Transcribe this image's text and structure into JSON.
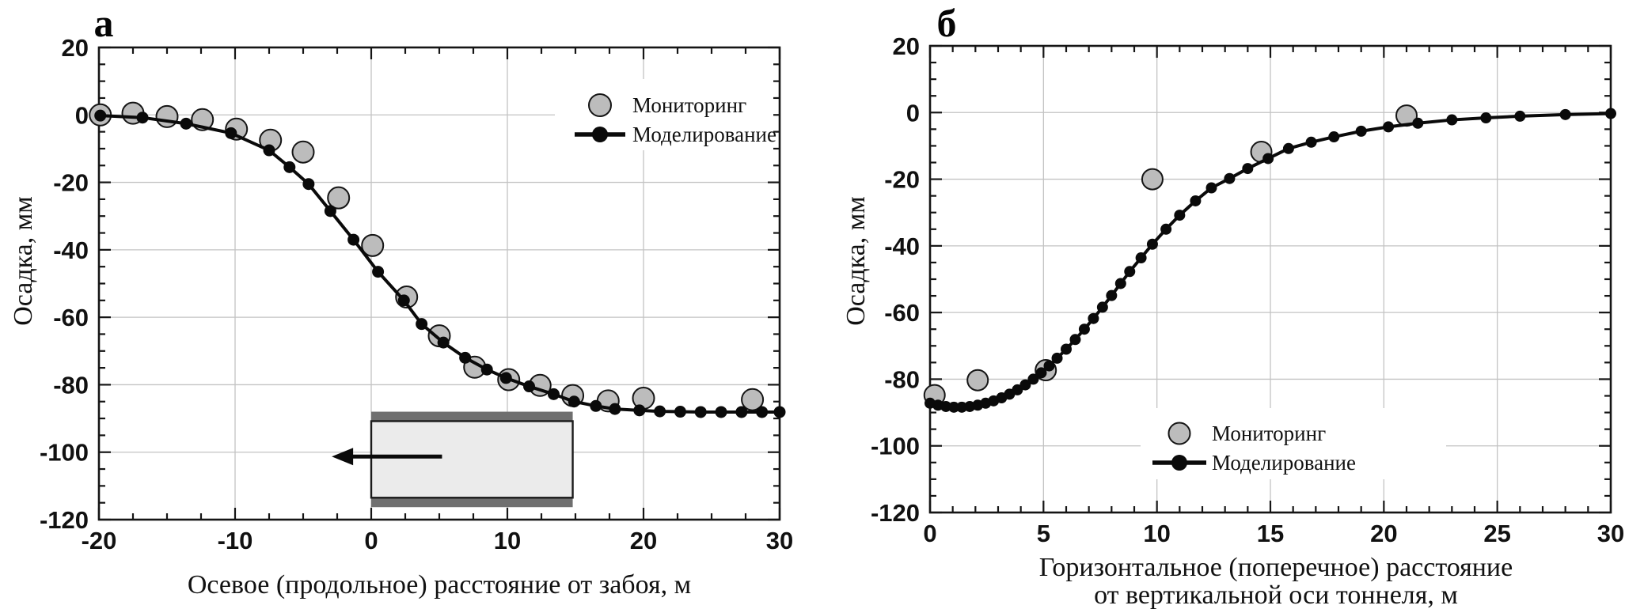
{
  "figure": {
    "background": "#ffffff",
    "colors": {
      "monitoring_fill": "#bcbcbc",
      "monitoring_stroke": "#151515",
      "model": "#0a0a0a",
      "grid": "#c3c3c3",
      "frame": "#151515",
      "tunnel_body": "#ebebeb",
      "tunnel_lining": "#6f6f6f",
      "tunnel_border": "#1b1b1b"
    }
  },
  "chart_data": [
    {
      "id": "a",
      "type": "scatter",
      "panel_letter": "а",
      "ylabel": "Осадка, мм",
      "xlabel_lines": [
        "Осевое (продольное) расстояние от забоя, м"
      ],
      "xlim": [
        -20,
        30
      ],
      "ylim": [
        -120,
        20
      ],
      "x_ticks": [
        -20,
        -10,
        0,
        10,
        20,
        30
      ],
      "y_ticks": [
        20,
        0,
        -20,
        -40,
        -60,
        -80,
        -100,
        -120
      ],
      "x_minor_step": 2.5,
      "y_minor_step": 5,
      "grid": true,
      "legend_position": "upper-right",
      "series": [
        {
          "name": "Мониторинг",
          "type": "scatter",
          "points": [
            [
              -19.9,
              0
            ],
            [
              -17.5,
              0.5
            ],
            [
              -15,
              -0.5
            ],
            [
              -12.4,
              -1.4
            ],
            [
              -9.9,
              -4.2
            ],
            [
              -7.4,
              -7.5
            ],
            [
              -5,
              -11
            ],
            [
              -2.4,
              -24.6
            ],
            [
              0.1,
              -38.7
            ],
            [
              2.6,
              -54
            ],
            [
              5,
              -65.5
            ],
            [
              7.6,
              -74.8
            ],
            [
              10.1,
              -78.5
            ],
            [
              12.4,
              -80.2
            ],
            [
              14.8,
              -83.2
            ],
            [
              17.4,
              -84.8
            ],
            [
              20,
              -84
            ],
            [
              28,
              -84.4
            ]
          ]
        },
        {
          "name": "Моделирование",
          "type": "line-scatter",
          "points": [
            [
              -19.9,
              -0.2
            ],
            [
              -16.8,
              -0.8
            ],
            [
              -13.6,
              -2.6
            ],
            [
              -10.3,
              -5.4
            ],
            [
              -7.5,
              -10.5
            ],
            [
              -6,
              -15.5
            ],
            [
              -4.6,
              -20.5
            ],
            [
              -3,
              -28.5
            ],
            [
              -1.3,
              -37
            ],
            [
              0.5,
              -46.5
            ],
            [
              2.4,
              -55
            ],
            [
              3.7,
              -62
            ],
            [
              5.3,
              -67.5
            ],
            [
              6.9,
              -72
            ],
            [
              8.5,
              -75.5
            ],
            [
              9.9,
              -78
            ],
            [
              11.6,
              -80.5
            ],
            [
              13.4,
              -82.8
            ],
            [
              14.9,
              -85
            ],
            [
              16.5,
              -86.3
            ],
            [
              17.9,
              -87.2
            ],
            [
              19.7,
              -87.6
            ],
            [
              21.2,
              -87.9
            ],
            [
              22.7,
              -88
            ],
            [
              24.2,
              -88.1
            ],
            [
              25.7,
              -88.1
            ],
            [
              27.2,
              -88.1
            ],
            [
              28.7,
              -88.1
            ],
            [
              30,
              -88.1
            ]
          ]
        }
      ],
      "tunnel_schematic": {
        "x_start": 0,
        "x_end": 14.8,
        "y_top": -88,
        "y_bottom": -116.3,
        "lining_thickness": 2.8,
        "arrow": {
          "x_from": 5.2,
          "x_to": -2.9,
          "y": -101.3
        }
      }
    },
    {
      "id": "b",
      "type": "scatter",
      "panel_letter": "б",
      "ylabel": "Осадка, мм",
      "xlabel_lines": [
        "Горизонтальное (поперечное) расстояние",
        "от вертикальной оси тоннеля, м"
      ],
      "xlim": [
        0,
        30
      ],
      "ylim": [
        -120,
        20
      ],
      "x_ticks": [
        0,
        5,
        10,
        15,
        20,
        25,
        30
      ],
      "y_ticks": [
        20,
        0,
        -20,
        -40,
        -60,
        -80,
        -100,
        -120
      ],
      "x_minor_step": 1,
      "y_minor_step": 5,
      "grid": true,
      "legend_position": "lower-right",
      "series": [
        {
          "name": "Мониторинг",
          "type": "scatter",
          "points": [
            [
              0.2,
              -84.8
            ],
            [
              2.1,
              -80.3
            ],
            [
              5.1,
              -77.3
            ],
            [
              9.8,
              -20
            ],
            [
              14.6,
              -11.8
            ],
            [
              21,
              -0.9
            ]
          ]
        },
        {
          "name": "Моделирование",
          "type": "line-scatter",
          "points": [
            [
              0,
              -87.2
            ],
            [
              0.35,
              -87.8
            ],
            [
              0.7,
              -88.2
            ],
            [
              1.05,
              -88.4
            ],
            [
              1.4,
              -88.4
            ],
            [
              1.75,
              -88.2
            ],
            [
              2.1,
              -87.8
            ],
            [
              2.45,
              -87.2
            ],
            [
              2.8,
              -86.5
            ],
            [
              3.15,
              -85.6
            ],
            [
              3.5,
              -84.5
            ],
            [
              3.85,
              -83.2
            ],
            [
              4.2,
              -81.7
            ],
            [
              4.55,
              -80
            ],
            [
              4.9,
              -78.1
            ],
            [
              5.25,
              -76
            ],
            [
              5.6,
              -73.7
            ],
            [
              6,
              -71
            ],
            [
              6.4,
              -68.1
            ],
            [
              6.8,
              -65
            ],
            [
              7.2,
              -61.8
            ],
            [
              7.6,
              -58.4
            ],
            [
              8,
              -54.9
            ],
            [
              8.4,
              -51.3
            ],
            [
              8.8,
              -47.7
            ],
            [
              9.3,
              -43.6
            ],
            [
              9.8,
              -39.5
            ],
            [
              10.4,
              -35
            ],
            [
              11,
              -30.8
            ],
            [
              11.7,
              -26.5
            ],
            [
              12.4,
              -22.6
            ],
            [
              13.2,
              -19.8
            ],
            [
              14,
              -16.8
            ],
            [
              14.9,
              -13.8
            ],
            [
              15.8,
              -10.8
            ],
            [
              16.8,
              -8.9
            ],
            [
              17.8,
              -7.3
            ],
            [
              19,
              -5.6
            ],
            [
              20.2,
              -4.3
            ],
            [
              21.5,
              -3.2
            ],
            [
              23,
              -2.2
            ],
            [
              24.5,
              -1.6
            ],
            [
              26,
              -1.1
            ],
            [
              28,
              -0.6
            ],
            [
              30,
              -0.3
            ]
          ]
        }
      ]
    }
  ]
}
